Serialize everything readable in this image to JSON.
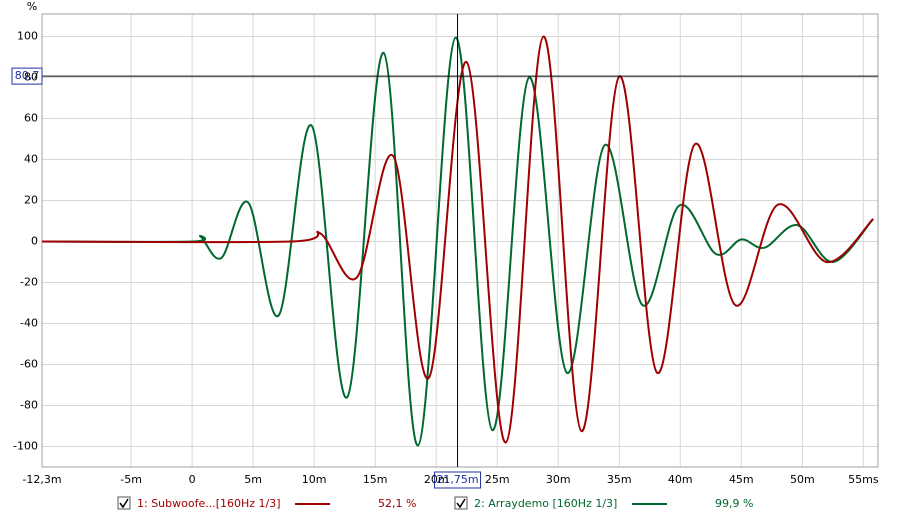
{
  "chart_data": {
    "type": "line",
    "y_axis_label": "%",
    "xlim": [
      -12.3,
      56.2
    ],
    "ylim": [
      -110,
      111
    ],
    "xticks": [
      {
        "value": -12.3,
        "label": "-12,3m"
      },
      {
        "value": -5,
        "label": "-5m"
      },
      0,
      {
        "value": 5,
        "label": "5m"
      },
      {
        "value": 10,
        "label": "10m"
      },
      {
        "value": 15,
        "label": "15m"
      },
      {
        "value": 20,
        "label": "20m"
      },
      {
        "value": 25,
        "label": "25m"
      },
      {
        "value": 30,
        "label": "30m"
      },
      {
        "value": 35,
        "label": "35m"
      },
      {
        "value": 40,
        "label": "40m"
      },
      {
        "value": 45,
        "label": "45m"
      },
      {
        "value": 50,
        "label": "50m"
      },
      {
        "value": 55,
        "label": "55ms"
      }
    ],
    "yticks": [
      100,
      80,
      60,
      40,
      20,
      0,
      -20,
      -40,
      -60,
      -80,
      -100
    ],
    "grid": true,
    "cursor": {
      "x": 21.75,
      "x_label": "21,75m",
      "y": 80.7,
      "y_label": "80,7"
    },
    "series": [
      {
        "name": "1: Subwoofe...[160Hz 1/3]",
        "color": "#a00000",
        "readout": "52,1 %",
        "x": [
          -12.3,
          8,
          10.5,
          13.5,
          16.5,
          19.4,
          22.5,
          25.7,
          28.8,
          31.9,
          35,
          38.1,
          41.2,
          44.5,
          48,
          52,
          55.8
        ],
        "values": [
          0,
          0,
          4,
          -17.5,
          41.5,
          -66.5,
          87.5,
          -98,
          100,
          -92.5,
          80.5,
          -64,
          47.5,
          -31,
          18,
          -10,
          11
        ]
      },
      {
        "name": "2: Arraydemo [160Hz 1/3]",
        "color": "#006830",
        "readout": "99,9 %",
        "x": [
          -12.3,
          0,
          0.7,
          2.4,
          4.6,
          7.1,
          9.8,
          12.7,
          15.7,
          18.5,
          21.6,
          24.6,
          27.6,
          30.7,
          33.8,
          36.9,
          39.9,
          42.9,
          45,
          46.9,
          49.6,
          52.5,
          55.8
        ],
        "values": [
          0,
          0,
          2.4,
          -8,
          19,
          -36,
          56.5,
          -76,
          92,
          -99.5,
          99.5,
          -92,
          80,
          -64,
          47,
          -31,
          17.5,
          -6,
          1,
          -3,
          8,
          -10,
          11
        ]
      }
    ]
  }
}
